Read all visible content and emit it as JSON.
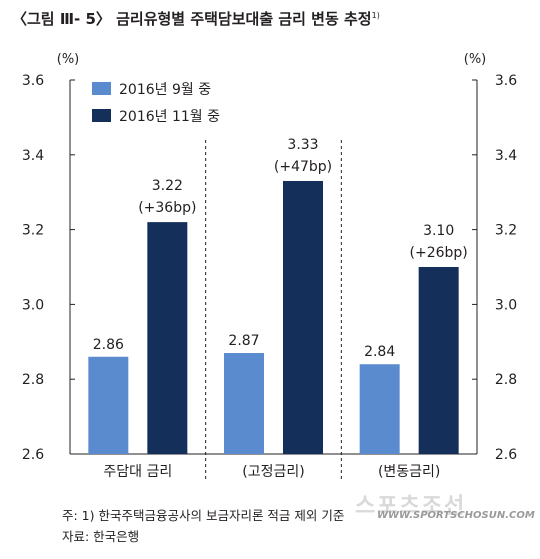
{
  "title": {
    "text": "〈그림 Ⅲ- 5〉 금리유형별 주택담보대출 금리 변동 추정",
    "footnote_mark": "1)"
  },
  "colors": {
    "series1": "#5b8bcf",
    "series2": "#14305a",
    "text": "#231f20",
    "axis": "#231f20"
  },
  "chart_data": {
    "type": "bar",
    "categories": [
      "주담대 금리",
      "(고정금리)",
      "(변동금리)"
    ],
    "series": [
      {
        "name": "2016년 9월 중",
        "values": [
          2.86,
          2.87,
          2.84
        ],
        "labels": [
          "2.86",
          "2.87",
          "2.84"
        ]
      },
      {
        "name": "2016년 11월 중",
        "values": [
          3.22,
          3.33,
          3.1
        ],
        "labels": [
          "3.22",
          "3.33",
          "3.10"
        ],
        "changes": [
          "(+36bp)",
          "(+47bp)",
          "(+26bp)"
        ]
      }
    ],
    "ylim": [
      2.6,
      3.6
    ],
    "yticks": [
      "2.6",
      "2.8",
      "3.0",
      "3.2",
      "3.4",
      "3.6"
    ],
    "yunit_left": "(%)",
    "yunit_right": "(%)",
    "legend_position": "top-left",
    "category_separators": "dashed"
  },
  "notes": [
    "주: 1) 한국주택금융공사의 보금자리론 적금 제외 기준",
    "자료: 한국은행"
  ],
  "watermark": {
    "logo": "스포츠조선",
    "url": "WWW.SPORTSCHOSUN.COM"
  }
}
